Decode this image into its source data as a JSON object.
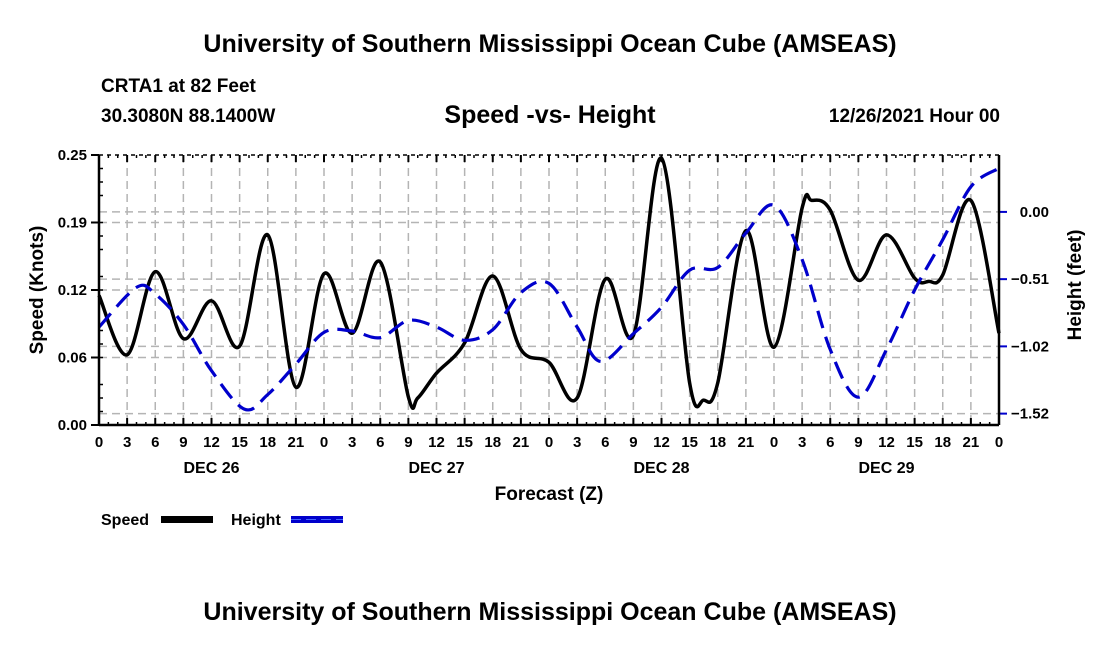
{
  "header": {
    "main_title": "University of Southern Mississippi Ocean Cube (AMSEAS)",
    "station": "CRTA1 at 82 Feet",
    "coords": "30.3080N  88.1400W",
    "subtitle": "Speed -vs- Height",
    "datetime": "12/26/2021 Hour 00",
    "bottom_title": "University of Southern Mississippi Ocean Cube (AMSEAS)"
  },
  "chart_data": {
    "type": "line",
    "title": "Speed -vs- Height",
    "xlabel": "Forecast (Z)",
    "ylabel": "Speed (Knots)",
    "y2label": "Height (feet)",
    "x_unit": "forecast hour",
    "xlim": [
      0,
      96
    ],
    "ylim": [
      0,
      0.25
    ],
    "y2lim": [
      -1.61,
      0.43
    ],
    "grid": true,
    "x_ticks": [
      0,
      3,
      6,
      9,
      12,
      15,
      18,
      21,
      24,
      27,
      30,
      33,
      36,
      39,
      42,
      45,
      48,
      51,
      54,
      57,
      60,
      63,
      66,
      69,
      72,
      75,
      78,
      81,
      84,
      87,
      90,
      93,
      96
    ],
    "x_tick_labels": [
      "0",
      "3",
      "6",
      "9",
      "12",
      "15",
      "18",
      "21",
      "0",
      "3",
      "6",
      "9",
      "12",
      "15",
      "18",
      "21",
      "0",
      "3",
      "6",
      "9",
      "12",
      "15",
      "18",
      "21",
      "0",
      "3",
      "6",
      "9",
      "12",
      "15",
      "18",
      "21",
      "0"
    ],
    "day_labels": [
      {
        "label": "DEC 26",
        "center_hour": 12
      },
      {
        "label": "DEC 27",
        "center_hour": 36
      },
      {
        "label": "DEC 28",
        "center_hour": 60
      },
      {
        "label": "DEC 29",
        "center_hour": 84
      }
    ],
    "y_ticks": [
      0,
      0.0625,
      0.125,
      0.1875,
      0.25
    ],
    "y_tick_labels": [
      "0.00",
      "0.06",
      "0.12",
      "0.19",
      "0.25"
    ],
    "y2_ticks": [
      0,
      -0.508,
      -1.016,
      -1.524
    ],
    "y2_tick_labels": [
      "0.00",
      "−0.51",
      "−1.02",
      "−1.52"
    ],
    "legend": {
      "placement": "bottom-left",
      "entries": [
        {
          "name": "Speed",
          "color": "#000000",
          "style": "solid"
        },
        {
          "name": "Height",
          "color": "#0000cc",
          "style": "dashed"
        }
      ]
    },
    "series": [
      {
        "name": "Speed",
        "axis": "left",
        "color": "#000000",
        "x": [
          0,
          3,
          6,
          9,
          12,
          15,
          18,
          21,
          24,
          27,
          30,
          33,
          34,
          36,
          39,
          42,
          45,
          48,
          51,
          54,
          57,
          60,
          63,
          64.5,
          66,
          69,
          72,
          75,
          76,
          78,
          81,
          84,
          87,
          88.5,
          90,
          93,
          96
        ],
        "values": [
          0.12,
          0.065,
          0.142,
          0.08,
          0.115,
          0.073,
          0.176,
          0.035,
          0.14,
          0.085,
          0.151,
          0.026,
          0.025,
          0.048,
          0.076,
          0.138,
          0.07,
          0.058,
          0.025,
          0.135,
          0.083,
          0.247,
          0.039,
          0.023,
          0.039,
          0.18,
          0.072,
          0.201,
          0.208,
          0.199,
          0.134,
          0.176,
          0.136,
          0.133,
          0.139,
          0.208,
          0.085
        ]
      },
      {
        "name": "Height",
        "axis": "right",
        "color": "#0000cc",
        "x": [
          0,
          4,
          6,
          9,
          12,
          15.5,
          18,
          21,
          24,
          27,
          30,
          33,
          36,
          39,
          42,
          45,
          48,
          51,
          53.5,
          57,
          60,
          63,
          66,
          69,
          72,
          75,
          78,
          81,
          84,
          87,
          90,
          93,
          96
        ],
        "values": [
          -0.87,
          -0.57,
          -0.62,
          -0.85,
          -1.2,
          -1.49,
          -1.38,
          -1.15,
          -0.91,
          -0.9,
          -0.95,
          -0.82,
          -0.87,
          -0.97,
          -0.89,
          -0.61,
          -0.54,
          -0.87,
          -1.13,
          -0.92,
          -0.72,
          -0.44,
          -0.42,
          -0.16,
          0.05,
          -0.36,
          -1.04,
          -1.4,
          -1.04,
          -0.59,
          -0.21,
          0.19,
          0.33
        ]
      }
    ]
  }
}
